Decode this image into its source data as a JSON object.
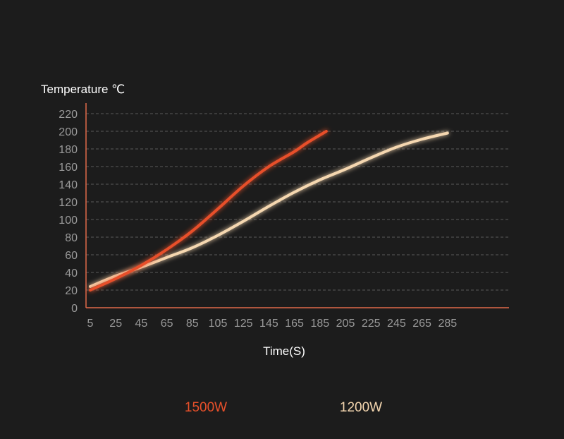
{
  "chart_data": {
    "type": "line",
    "xlabel": "Time(S)",
    "ylabel": "Temperature ℃",
    "x_ticks": [
      "5",
      "25",
      "45",
      "65",
      "85",
      "105",
      "125",
      "145",
      "165",
      "185",
      "205",
      "225",
      "245",
      "265",
      "285"
    ],
    "y_ticks": [
      "0",
      "20",
      "40",
      "60",
      "80",
      "100",
      "120",
      "140",
      "160",
      "180",
      "200",
      "220"
    ],
    "xlim": [
      5,
      285
    ],
    "ylim": [
      0,
      220
    ],
    "grid": "horizontal dashed",
    "legend_position": "bottom",
    "colors": {
      "background": "#1c1c1c",
      "axis": "#e0694a",
      "grid": "#5a5a5a"
    },
    "series": [
      {
        "name": "1500W",
        "color": "#e8502a",
        "points": [
          [
            5,
            20
          ],
          [
            25,
            33
          ],
          [
            45,
            48
          ],
          [
            65,
            66
          ],
          [
            85,
            87
          ],
          [
            105,
            112
          ],
          [
            125,
            138
          ],
          [
            145,
            160
          ],
          [
            165,
            177
          ],
          [
            175,
            187
          ],
          [
            190,
            200
          ]
        ]
      },
      {
        "name": "1200W",
        "color": "#f5d7b0",
        "points": [
          [
            5,
            24
          ],
          [
            25,
            36
          ],
          [
            45,
            46
          ],
          [
            65,
            57
          ],
          [
            85,
            68
          ],
          [
            105,
            82
          ],
          [
            125,
            98
          ],
          [
            145,
            115
          ],
          [
            165,
            131
          ],
          [
            185,
            145
          ],
          [
            205,
            157
          ],
          [
            225,
            170
          ],
          [
            245,
            182
          ],
          [
            265,
            191
          ],
          [
            285,
            198
          ]
        ]
      }
    ]
  }
}
